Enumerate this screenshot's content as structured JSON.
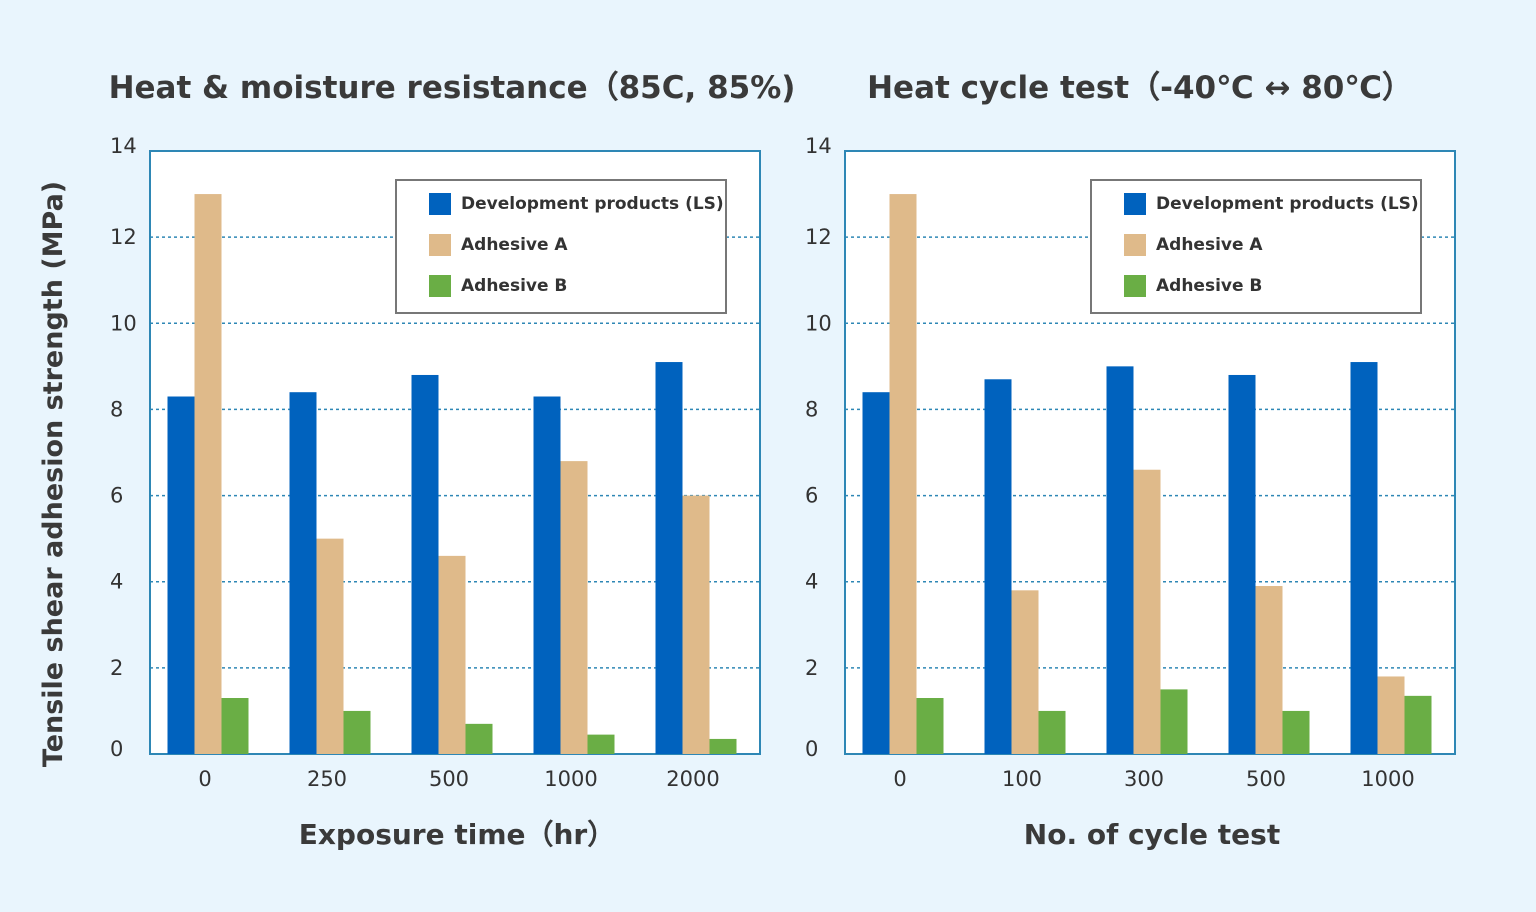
{
  "y_axis_label": "Tensile shear adhesion strength (MPa)",
  "colors": {
    "Development products (LS)": "#0062be",
    "Adhesive A": "#dfba8a",
    "Adhesive B": "#6aae45",
    "frame": "#2e87b5",
    "grid": "#2e87b5",
    "background": "#e9f5fd"
  },
  "chart_data": [
    {
      "type": "bar",
      "title": "Heat & moisture resistance（85C, 85%)",
      "xlabel": "Exposure time（hr）",
      "ylabel": "Tensile shear adhesion strength (MPa)",
      "categories": [
        "0",
        "250",
        "500",
        "1000",
        "2000"
      ],
      "yticks": [
        "0",
        "2",
        "4",
        "6",
        "8",
        "10",
        "12",
        "14"
      ],
      "ylim": [
        0,
        14
      ],
      "grid": true,
      "legend_position": "top-right",
      "series": [
        {
          "name": "Development products (LS)",
          "values": [
            8.3,
            8.4,
            8.8,
            8.3,
            9.1
          ]
        },
        {
          "name": "Adhesive A",
          "values": [
            13.0,
            5.0,
            4.6,
            6.8,
            6.0
          ]
        },
        {
          "name": "Adhesive B",
          "values": [
            1.3,
            1.0,
            0.7,
            0.45,
            0.35
          ]
        }
      ]
    },
    {
      "type": "bar",
      "title": "Heat cycle test（-40℃ ↔ 80℃）",
      "xlabel": "No. of cycle test",
      "ylabel": "Tensile shear adhesion strength (MPa)",
      "categories": [
        "0",
        "100",
        "300",
        "500",
        "1000"
      ],
      "yticks": [
        "0",
        "2",
        "4",
        "6",
        "8",
        "10",
        "12",
        "14"
      ],
      "ylim": [
        0,
        14
      ],
      "grid": true,
      "legend_position": "top-right",
      "series": [
        {
          "name": "Development products (LS)",
          "values": [
            8.4,
            8.7,
            9.0,
            8.8,
            9.1
          ]
        },
        {
          "name": "Adhesive A",
          "values": [
            13.0,
            3.8,
            6.6,
            3.9,
            1.8
          ]
        },
        {
          "name": "Adhesive B",
          "values": [
            1.3,
            1.0,
            1.5,
            1.0,
            1.35
          ]
        }
      ]
    }
  ]
}
